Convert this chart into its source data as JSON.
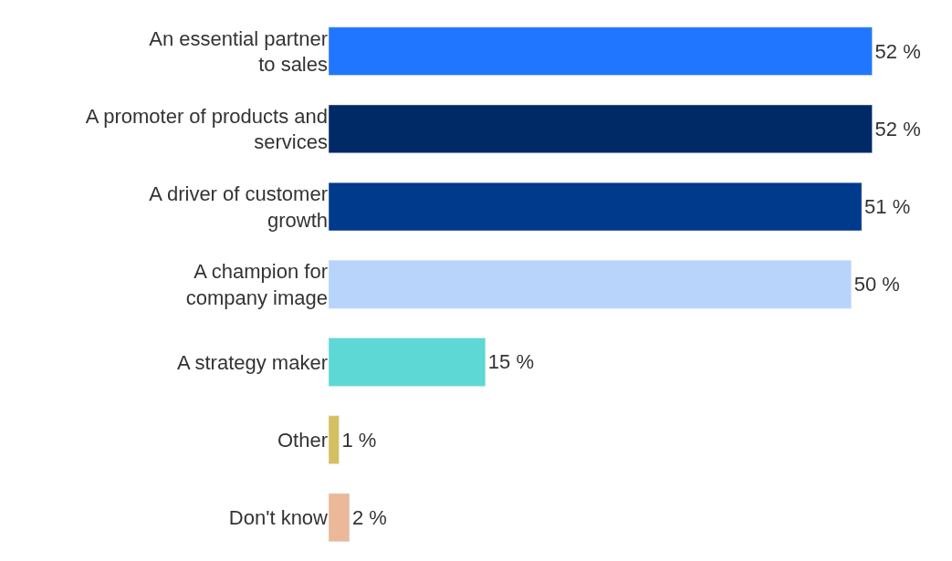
{
  "chart_data": {
    "type": "bar",
    "orientation": "horizontal",
    "categories": [
      "An essential partner\nto sales",
      "A promoter of products and\nservices",
      "A driver of customer\ngrowth",
      "A champion for\ncompany image",
      "A strategy maker",
      "Other",
      "Don't know"
    ],
    "values": [
      52,
      52,
      51,
      50,
      15,
      1,
      2
    ],
    "colors": [
      "#2176ff",
      "#002a66",
      "#003a8c",
      "#b8d4fa",
      "#5dd8d4",
      "#d4c060",
      "#ebb89a"
    ],
    "value_labels": [
      "52 %",
      "52 %",
      "51 %",
      "50 %",
      "15 %",
      "1 %",
      "2 %"
    ]
  }
}
